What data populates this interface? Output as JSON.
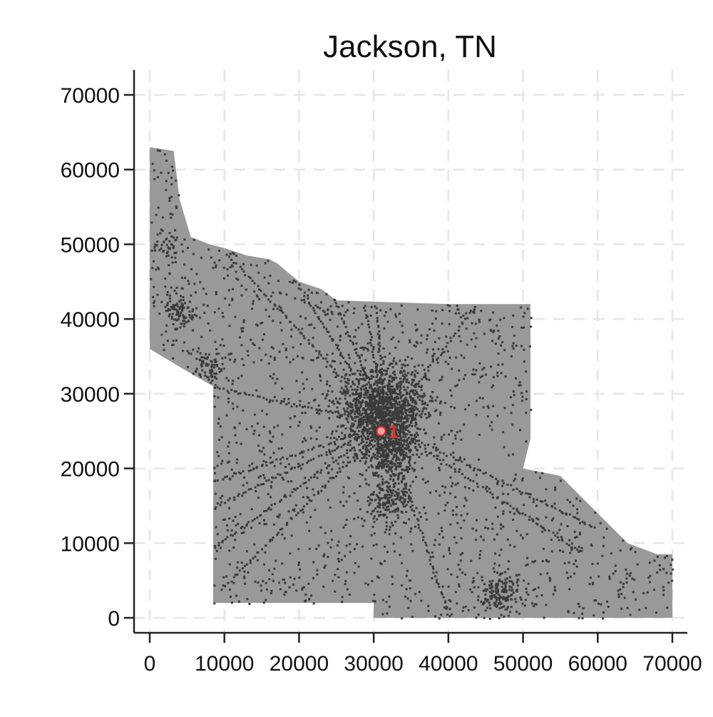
{
  "title": "Jackson, TN",
  "colors": {
    "region": "#999999",
    "dots": "#3a3a3a",
    "grid": "#e6e6e6",
    "axis": "#222222",
    "marker": "#e03030"
  },
  "chart_data": {
    "type": "scatter",
    "title": "Jackson, TN",
    "xlabel": "",
    "ylabel": "",
    "xlim": [
      -2000,
      72000
    ],
    "ylim": [
      -2000,
      72000
    ],
    "x_ticks": [
      "0",
      "10000",
      "20000",
      "30000",
      "40000",
      "50000",
      "60000",
      "70000"
    ],
    "y_ticks": [
      "0",
      "10000",
      "20000",
      "30000",
      "40000",
      "50000",
      "60000",
      "70000"
    ],
    "grid": true,
    "region_outline": [
      [
        0,
        63000
      ],
      [
        3200,
        62500
      ],
      [
        4000,
        56000
      ],
      [
        5500,
        51000
      ],
      [
        8000,
        50000
      ],
      [
        10000,
        49500
      ],
      [
        13000,
        48500
      ],
      [
        16000,
        48000
      ],
      [
        17000,
        47500
      ],
      [
        20000,
        45000
      ],
      [
        23000,
        44000
      ],
      [
        25000,
        42500
      ],
      [
        40000,
        42000
      ],
      [
        51000,
        42000
      ],
      [
        51000,
        24000
      ],
      [
        50000,
        20000
      ],
      [
        55000,
        19000
      ],
      [
        60000,
        14000
      ],
      [
        64000,
        10000
      ],
      [
        68000,
        8500
      ],
      [
        70000,
        8500
      ],
      [
        70000,
        0
      ],
      [
        30000,
        0
      ],
      [
        30000,
        2000
      ],
      [
        8500,
        2000
      ],
      [
        8500,
        31000
      ],
      [
        5000,
        33000
      ],
      [
        0,
        36000
      ]
    ],
    "clusters": [
      {
        "x": 31000,
        "y": 28000,
        "count": 1200
      },
      {
        "x": 32000,
        "y": 22000,
        "count": 300
      },
      {
        "x": 32000,
        "y": 16000,
        "count": 150
      },
      {
        "x": 47000,
        "y": 3500,
        "count": 150
      },
      {
        "x": 3500,
        "y": 41000,
        "count": 90
      },
      {
        "x": 8000,
        "y": 34000,
        "count": 70
      },
      {
        "x": 2000,
        "y": 50000,
        "count": 30
      }
    ],
    "markers": [
      {
        "x": 31000,
        "y": 25000,
        "label": "1"
      }
    ]
  }
}
